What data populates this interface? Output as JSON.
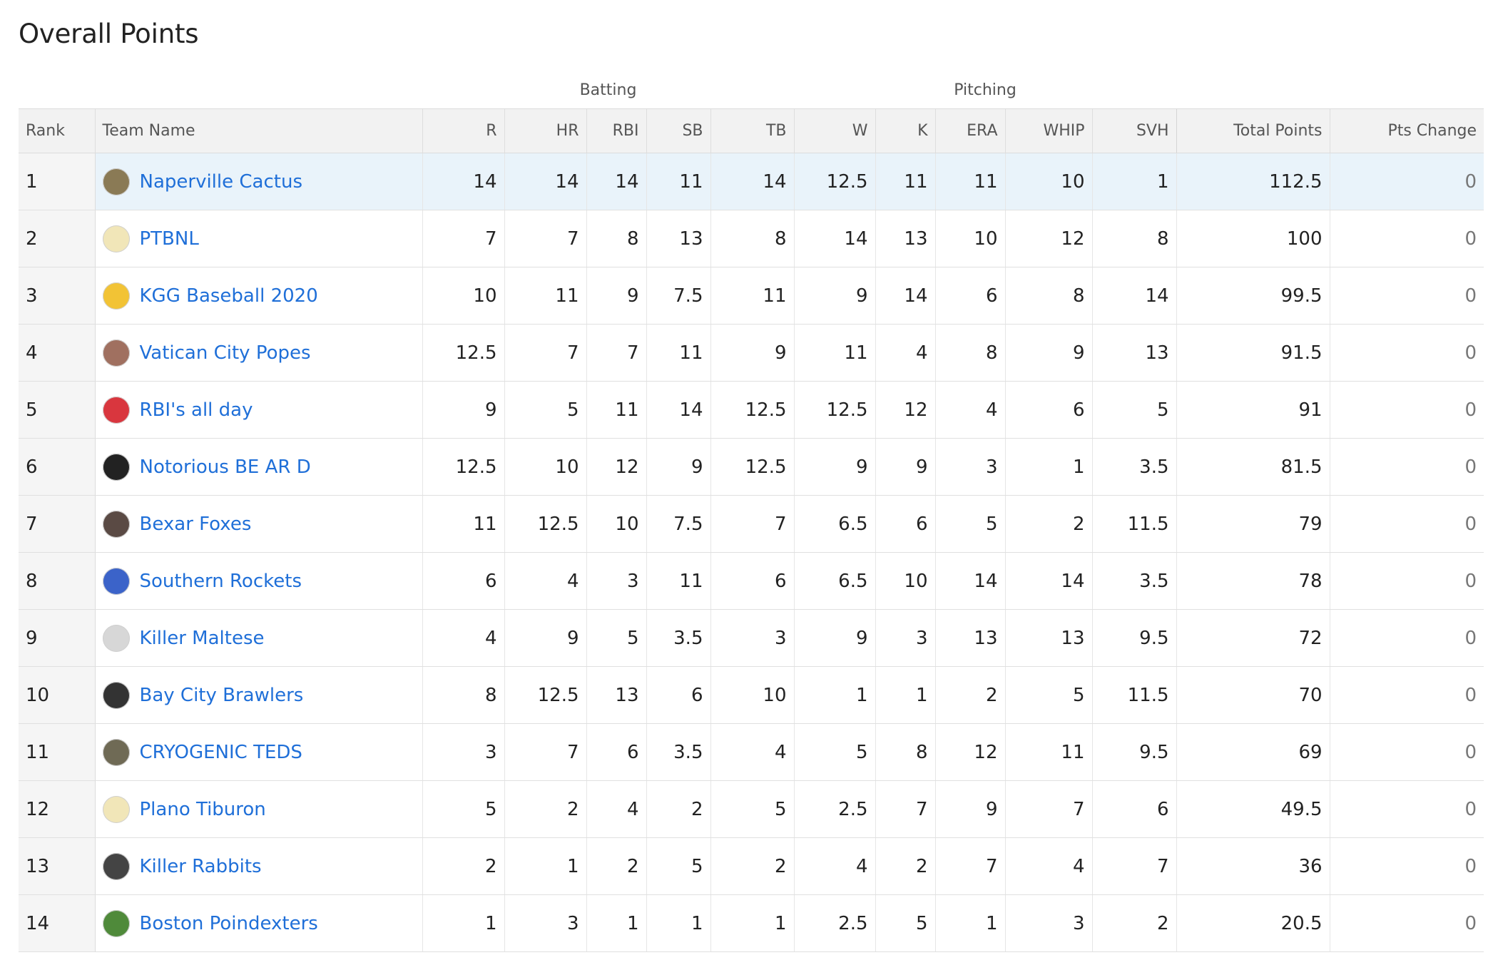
{
  "title": "Overall Points",
  "groups": {
    "batting": "Batting",
    "pitching": "Pitching"
  },
  "columns": {
    "rank": "Rank",
    "team": "Team Name",
    "r": "R",
    "hr": "HR",
    "rbi": "RBI",
    "sb": "SB",
    "tb": "TB",
    "w": "W",
    "k": "K",
    "era": "ERA",
    "whip": "WHIP",
    "svh": "SVH",
    "total": "Total Points",
    "change": "Pts Change"
  },
  "rows": [
    {
      "rank": "1",
      "team": "Naperville Cactus",
      "icon": "cactus-avatar-icon",
      "color": "#8a7a55",
      "r": "14",
      "hr": "14",
      "rbi": "14",
      "sb": "11",
      "tb": "14",
      "w": "12.5",
      "k": "11",
      "era": "11",
      "whip": "10",
      "svh": "1",
      "total": "112.5",
      "change": "0"
    },
    {
      "rank": "2",
      "team": "PTBNL",
      "icon": "cap-avatar-icon",
      "color": "#f1e6b8",
      "r": "7",
      "hr": "7",
      "rbi": "8",
      "sb": "13",
      "tb": "8",
      "w": "14",
      "k": "13",
      "era": "10",
      "whip": "12",
      "svh": "8",
      "total": "100",
      "change": "0"
    },
    {
      "rank": "3",
      "team": "KGG Baseball 2020",
      "icon": "green-cap-avatar-icon",
      "color": "#f2c335",
      "r": "10",
      "hr": "11",
      "rbi": "9",
      "sb": "7.5",
      "tb": "11",
      "w": "9",
      "k": "14",
      "era": "6",
      "whip": "8",
      "svh": "14",
      "total": "99.5",
      "change": "0"
    },
    {
      "rank": "4",
      "team": "Vatican City Popes",
      "icon": "photo-avatar-icon",
      "color": "#a07060",
      "r": "12.5",
      "hr": "7",
      "rbi": "7",
      "sb": "11",
      "tb": "9",
      "w": "11",
      "k": "4",
      "era": "8",
      "whip": "9",
      "svh": "13",
      "total": "91.5",
      "change": "0"
    },
    {
      "rank": "5",
      "team": "RBI's all day",
      "icon": "red-cap-avatar-icon",
      "color": "#d9363e",
      "r": "9",
      "hr": "5",
      "rbi": "11",
      "sb": "14",
      "tb": "12.5",
      "w": "12.5",
      "k": "12",
      "era": "4",
      "whip": "6",
      "svh": "5",
      "total": "91",
      "change": "0"
    },
    {
      "rank": "6",
      "team": "Notorious BE AR D",
      "icon": "emblem-avatar-icon",
      "color": "#222222",
      "r": "12.5",
      "hr": "10",
      "rbi": "12",
      "sb": "9",
      "tb": "12.5",
      "w": "9",
      "k": "9",
      "era": "3",
      "whip": "1",
      "svh": "3.5",
      "total": "81.5",
      "change": "0"
    },
    {
      "rank": "7",
      "team": "Bexar Foxes",
      "icon": "fox-avatar-icon",
      "color": "#5a4a44",
      "r": "11",
      "hr": "12.5",
      "rbi": "10",
      "sb": "7.5",
      "tb": "7",
      "w": "6.5",
      "k": "6",
      "era": "5",
      "whip": "2",
      "svh": "11.5",
      "total": "79",
      "change": "0"
    },
    {
      "rank": "8",
      "team": "Southern Rockets",
      "icon": "rocket-avatar-icon",
      "color": "#3b63c9",
      "r": "6",
      "hr": "4",
      "rbi": "3",
      "sb": "11",
      "tb": "6",
      "w": "6.5",
      "k": "10",
      "era": "14",
      "whip": "14",
      "svh": "3.5",
      "total": "78",
      "change": "0"
    },
    {
      "rank": "9",
      "team": "Killer Maltese",
      "icon": "dog-avatar-icon",
      "color": "#d7d7d7",
      "r": "4",
      "hr": "9",
      "rbi": "5",
      "sb": "3.5",
      "tb": "3",
      "w": "9",
      "k": "3",
      "era": "13",
      "whip": "13",
      "svh": "9.5",
      "total": "72",
      "change": "0"
    },
    {
      "rank": "10",
      "team": "Bay City Brawlers",
      "icon": "bulldog-avatar-icon",
      "color": "#333333",
      "r": "8",
      "hr": "12.5",
      "rbi": "13",
      "sb": "6",
      "tb": "10",
      "w": "1",
      "k": "1",
      "era": "2",
      "whip": "5",
      "svh": "11.5",
      "total": "70",
      "change": "0"
    },
    {
      "rank": "11",
      "team": "CRYOGENIC TEDS",
      "icon": "portrait-avatar-icon",
      "color": "#6f6a55",
      "r": "3",
      "hr": "7",
      "rbi": "6",
      "sb": "3.5",
      "tb": "4",
      "w": "5",
      "k": "8",
      "era": "12",
      "whip": "11",
      "svh": "9.5",
      "total": "69",
      "change": "0"
    },
    {
      "rank": "12",
      "team": "Plano Tiburon",
      "icon": "cap-avatar-icon",
      "color": "#f1e6b8",
      "r": "5",
      "hr": "2",
      "rbi": "4",
      "sb": "2",
      "tb": "5",
      "w": "2.5",
      "k": "7",
      "era": "9",
      "whip": "7",
      "svh": "6",
      "total": "49.5",
      "change": "0"
    },
    {
      "rank": "13",
      "team": "Killer Rabbits",
      "icon": "rabbit-avatar-icon",
      "color": "#444444",
      "r": "2",
      "hr": "1",
      "rbi": "2",
      "sb": "5",
      "tb": "2",
      "w": "4",
      "k": "2",
      "era": "7",
      "whip": "4",
      "svh": "7",
      "total": "36",
      "change": "0"
    },
    {
      "rank": "14",
      "team": "Boston Poindexters",
      "icon": "frog-avatar-icon",
      "color": "#4f8a3a",
      "r": "1",
      "hr": "3",
      "rbi": "1",
      "sb": "1",
      "tb": "1",
      "w": "2.5",
      "k": "5",
      "era": "1",
      "whip": "3",
      "svh": "2",
      "total": "20.5",
      "change": "0"
    }
  ]
}
